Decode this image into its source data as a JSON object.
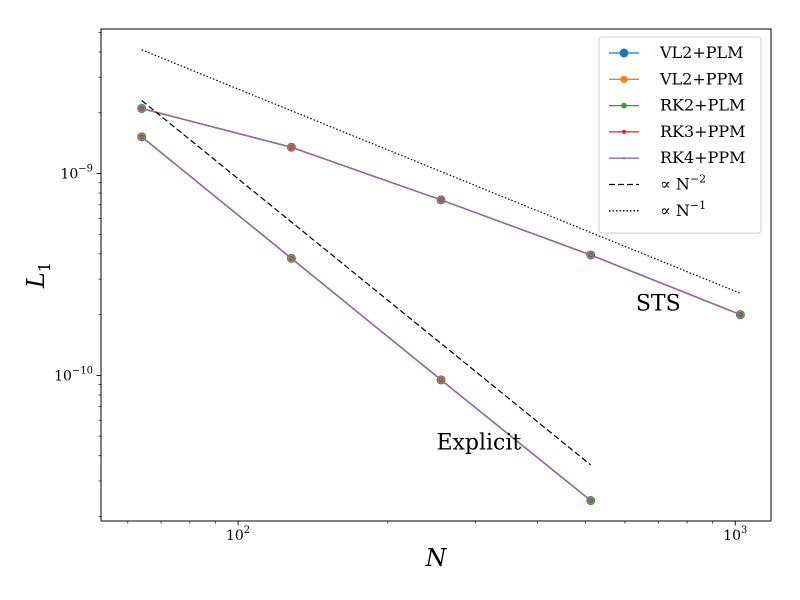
{
  "chart_data": {
    "type": "line",
    "title": "",
    "xlabel": "N",
    "ylabel": "L",
    "ylabel_subscript": "1",
    "xscale": "log",
    "yscale": "log",
    "xlim": [
      53,
      1180
    ],
    "ylim": [
      1.9e-11,
      5.2e-09
    ],
    "grid": false,
    "legend_position": "top-right",
    "x_ticks": [
      {
        "value": 100,
        "base": "10",
        "exp": "2"
      },
      {
        "value": 1000,
        "base": "10",
        "exp": "3"
      }
    ],
    "y_ticks": [
      {
        "value": 1e-10,
        "base": "10",
        "exp": "−10"
      },
      {
        "value": 1e-09,
        "base": "10",
        "exp": "−9"
      }
    ],
    "annotations": [
      {
        "text": "STS",
        "x": 700,
        "y": 2.1e-10
      },
      {
        "text": "Explicit",
        "x": 305,
        "y": 4.3e-11
      }
    ],
    "series": [
      {
        "name": "VL2+PLM",
        "color": "#1f77b4",
        "marker_size": 4.5,
        "style": "solid",
        "group": "STS",
        "x": [
          64,
          128,
          256,
          512,
          1024
        ],
        "y": [
          2.1e-09,
          1.35e-09,
          7.4e-10,
          3.95e-10,
          2e-10
        ]
      },
      {
        "name": "VL2+PPM",
        "color": "#ff7f0e",
        "marker_size": 3.6,
        "style": "solid",
        "group": "STS",
        "x": [
          64,
          128,
          256,
          512,
          1024
        ],
        "y": [
          2.1e-09,
          1.35e-09,
          7.4e-10,
          3.95e-10,
          2e-10
        ]
      },
      {
        "name": "RK2+PLM",
        "color": "#2ca02c",
        "marker_size": 2.8,
        "style": "solid",
        "group": "STS",
        "x": [
          64,
          128,
          256,
          512,
          1024
        ],
        "y": [
          2.1e-09,
          1.35e-09,
          7.4e-10,
          3.95e-10,
          2e-10
        ]
      },
      {
        "name": "RK3+PPM",
        "color": "#d62728",
        "marker_size": 2.0,
        "style": "solid",
        "group": "STS",
        "x": [
          64,
          128,
          256,
          512,
          1024
        ],
        "y": [
          2.1e-09,
          1.35e-09,
          7.4e-10,
          3.95e-10,
          2e-10
        ]
      },
      {
        "name": "RK4+PPM",
        "color": "#9467bd",
        "marker_size": 1.2,
        "style": "solid",
        "group": "STS",
        "x": [
          64,
          128,
          256,
          512,
          1024
        ],
        "y": [
          2.1e-09,
          1.35e-09,
          7.4e-10,
          3.95e-10,
          2e-10
        ]
      },
      {
        "name": "VL2+PLM",
        "color": "#1f77b4",
        "marker_size": 4.5,
        "style": "solid",
        "group": "Explicit",
        "in_legend": false,
        "x": [
          64,
          128,
          256,
          512
        ],
        "y": [
          1.52e-09,
          3.8e-10,
          9.5e-11,
          2.4e-11
        ]
      },
      {
        "name": "VL2+PPM",
        "color": "#ff7f0e",
        "marker_size": 3.6,
        "style": "solid",
        "group": "Explicit",
        "in_legend": false,
        "x": [
          64,
          128,
          256,
          512
        ],
        "y": [
          1.52e-09,
          3.8e-10,
          9.5e-11,
          2.4e-11
        ]
      },
      {
        "name": "RK2+PLM",
        "color": "#2ca02c",
        "marker_size": 2.8,
        "style": "solid",
        "group": "Explicit",
        "in_legend": false,
        "x": [
          64,
          128,
          256,
          512
        ],
        "y": [
          1.52e-09,
          3.8e-10,
          9.5e-11,
          2.4e-11
        ]
      },
      {
        "name": "RK3+PPM",
        "color": "#d62728",
        "marker_size": 2.0,
        "style": "solid",
        "group": "Explicit",
        "in_legend": false,
        "x": [
          64,
          128,
          256,
          512
        ],
        "y": [
          1.52e-09,
          3.8e-10,
          9.5e-11,
          2.4e-11
        ]
      },
      {
        "name": "RK4+PPM",
        "color": "#9467bd",
        "marker_size": 1.2,
        "style": "solid",
        "group": "Explicit",
        "in_legend": false,
        "x": [
          64,
          128,
          256,
          512
        ],
        "y": [
          1.52e-09,
          3.8e-10,
          9.5e-11,
          2.4e-11
        ]
      },
      {
        "name": "∝ N",
        "name_exp": "−2",
        "color": "#000000",
        "style": "dashed",
        "marker_size": 0,
        "reference": true,
        "x": [
          64,
          512
        ],
        "y": [
          2.3e-09,
          3.6e-11
        ]
      },
      {
        "name": "∝ N",
        "name_exp": "−1",
        "color": "#000000",
        "style": "dotted",
        "marker_size": 0,
        "reference": true,
        "x": [
          64,
          1024
        ],
        "y": [
          4.1e-09,
          2.55e-10
        ]
      }
    ]
  }
}
